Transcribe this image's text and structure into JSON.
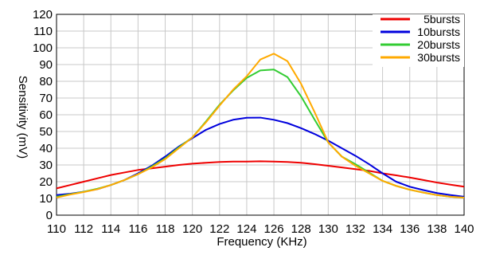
{
  "chart_data": {
    "type": "line",
    "title": "",
    "xlabel": "Frequency (KHz)",
    "ylabel": "Sensitivity (mV)",
    "xlim": [
      110,
      140
    ],
    "ylim": [
      0,
      120
    ],
    "x_ticks": [
      110,
      112,
      114,
      116,
      118,
      120,
      122,
      124,
      126,
      128,
      130,
      132,
      134,
      136,
      138,
      140
    ],
    "y_ticks": [
      0,
      10,
      20,
      30,
      40,
      50,
      60,
      70,
      80,
      90,
      100,
      110,
      120
    ],
    "grid": true,
    "legend_position": "top-right",
    "x": [
      110,
      111,
      112,
      113,
      114,
      115,
      116,
      117,
      118,
      119,
      120,
      121,
      122,
      123,
      124,
      125,
      126,
      127,
      128,
      129,
      130,
      131,
      132,
      133,
      134,
      135,
      136,
      137,
      138,
      139,
      140
    ],
    "series": [
      {
        "name": "5bursts",
        "color": "#ee0000",
        "values": [
          16,
          18,
          20,
          22,
          24,
          25.5,
          27,
          28,
          29,
          30,
          30.8,
          31.3,
          31.8,
          32,
          32,
          32.2,
          32,
          31.8,
          31.3,
          30.5,
          29.5,
          28.5,
          27.5,
          26.5,
          25,
          23.8,
          22.5,
          21,
          19.5,
          18.2,
          17
        ]
      },
      {
        "name": "10bursts",
        "color": "#0000dd",
        "values": [
          12,
          12.8,
          14,
          15.5,
          18,
          21,
          25,
          29.5,
          35,
          41,
          46,
          51,
          54.5,
          57,
          58.2,
          58.3,
          57,
          55,
          52,
          48.5,
          44.5,
          40,
          35.5,
          30.5,
          25,
          20,
          17,
          15,
          13.2,
          12,
          11
        ]
      },
      {
        "name": "20bursts",
        "color": "#33cc33",
        "values": [
          11,
          12.5,
          14,
          15.8,
          18,
          21,
          24.5,
          29,
          34,
          40.5,
          46.5,
          56,
          66,
          74.5,
          82,
          86.5,
          87,
          82.5,
          71,
          57,
          43.5,
          35,
          30.5,
          25.5,
          20.5,
          17.5,
          15.2,
          13.5,
          12,
          11,
          10.5
        ]
      },
      {
        "name": "30bursts",
        "color": "#ffaa00",
        "values": [
          10.5,
          12.3,
          13.8,
          15.5,
          18,
          21,
          24.5,
          28.5,
          33.5,
          40,
          46.5,
          55.5,
          65.5,
          75,
          83,
          93,
          96.5,
          92,
          78.5,
          61.5,
          43.5,
          35,
          29.5,
          25,
          20.5,
          17.5,
          15.2,
          13.5,
          12,
          11,
          10.5
        ]
      }
    ]
  }
}
